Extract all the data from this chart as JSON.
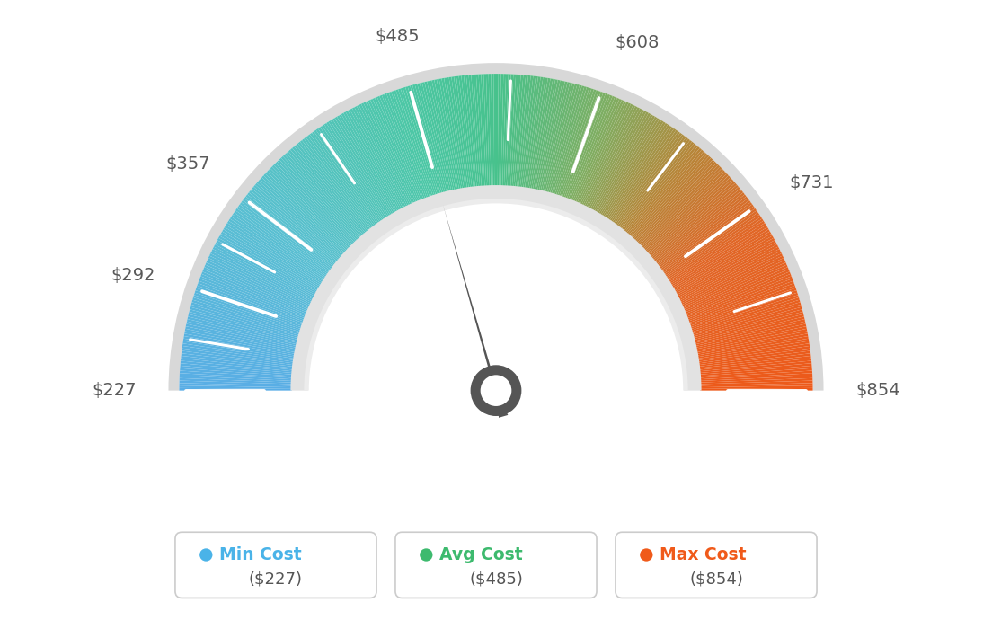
{
  "min_val": 227,
  "max_val": 854,
  "avg_val": 485,
  "needle_value": 485,
  "tick_labels": [
    "$227",
    "$292",
    "$357",
    "$485",
    "$608",
    "$731",
    "$854"
  ],
  "tick_values": [
    227,
    292,
    357,
    485,
    608,
    731,
    854
  ],
  "all_ticks": [
    227,
    260,
    292,
    325,
    357,
    421,
    485,
    550,
    608,
    670,
    731,
    790,
    854
  ],
  "major_ticks": [
    227,
    292,
    357,
    485,
    608,
    731,
    854
  ],
  "legend_min_label": "Min Cost",
  "legend_avg_label": "Avg Cost",
  "legend_max_label": "Max Cost",
  "legend_min_value": "($227)",
  "legend_avg_value": "($485)",
  "legend_max_value": "($854)",
  "legend_min_color": "#4ab3e8",
  "legend_avg_color": "#3dba6e",
  "legend_max_color": "#f05a1a",
  "background_color": "#ffffff",
  "color_stops": [
    [
      0.0,
      [
        0.35,
        0.68,
        0.9
      ]
    ],
    [
      0.2,
      [
        0.35,
        0.75,
        0.82
      ]
    ],
    [
      0.4,
      [
        0.3,
        0.78,
        0.65
      ]
    ],
    [
      0.5,
      [
        0.28,
        0.76,
        0.55
      ]
    ],
    [
      0.62,
      [
        0.5,
        0.68,
        0.38
      ]
    ],
    [
      0.72,
      [
        0.72,
        0.52,
        0.22
      ]
    ],
    [
      0.82,
      [
        0.88,
        0.4,
        0.15
      ]
    ],
    [
      1.0,
      [
        0.93,
        0.35,
        0.1
      ]
    ]
  ]
}
